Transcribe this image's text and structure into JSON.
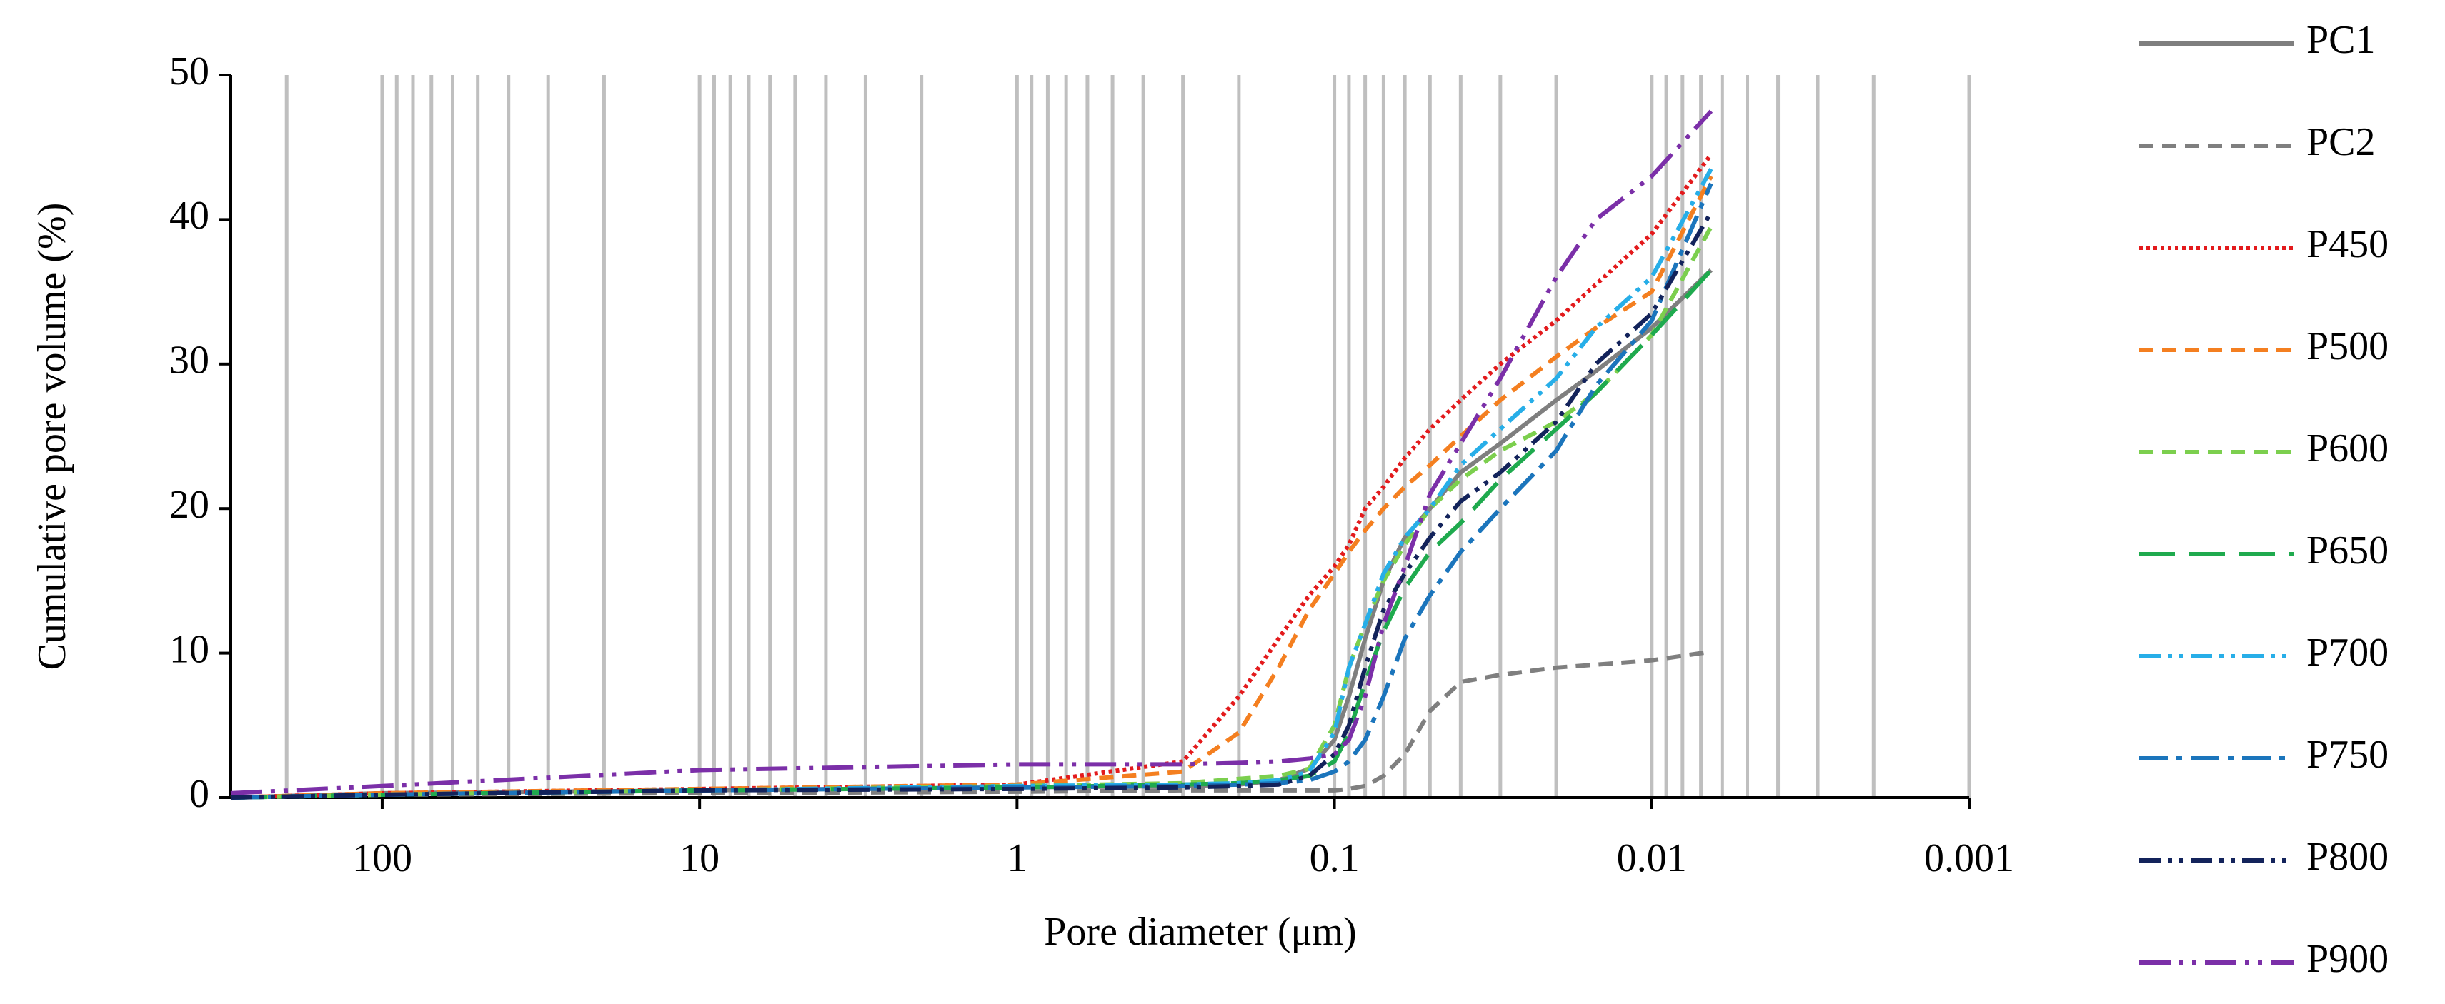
{
  "chart_data": {
    "type": "line",
    "x_label": "Pore diameter (μm)",
    "y_label": "Cumulative pore volume (%)",
    "x_scale": "log",
    "xlim": [
      300,
      0.001
    ],
    "xticks": [
      100,
      10,
      1,
      0.1,
      0.01,
      0.001
    ],
    "x_minor_grid": [
      200,
      90,
      80,
      70,
      60,
      50,
      40,
      30,
      20,
      9,
      8,
      7,
      6,
      5,
      4,
      3,
      2,
      0.9,
      0.8,
      0.7,
      0.6,
      0.5,
      0.4,
      0.3,
      0.2,
      0.09,
      0.08,
      0.07,
      0.06,
      0.05,
      0.04,
      0.03,
      0.02,
      0.009,
      0.008,
      0.007,
      0.006,
      0.005,
      0.004,
      0.003,
      0.002
    ],
    "ylim": [
      0,
      50
    ],
    "yticks": [
      0,
      10,
      20,
      30,
      40,
      50
    ],
    "grid": true,
    "legend": "right",
    "x": [
      300,
      100,
      10,
      1,
      0.3,
      0.2,
      0.15,
      0.12,
      0.1,
      0.09,
      0.08,
      0.07,
      0.06,
      0.05,
      0.04,
      0.03,
      0.02,
      0.015,
      0.01,
      0.0065
    ],
    "series": [
      {
        "name": "PC1",
        "color": "#7f7f7f",
        "dash": "solid",
        "values": [
          0,
          0.3,
          0.5,
          0.7,
          0.8,
          0.9,
          1.2,
          2,
          4,
          7,
          11,
          15,
          18,
          20,
          22.5,
          24.5,
          27.5,
          29.5,
          32.5,
          36.5
        ]
      },
      {
        "name": "PC2",
        "color": "#7f7f7f",
        "dash": "dash",
        "values": [
          0,
          0.2,
          0.3,
          0.4,
          0.5,
          0.5,
          0.5,
          0.5,
          0.5,
          0.6,
          0.8,
          1.5,
          3,
          6,
          8,
          8.5,
          9,
          9.2,
          9.5,
          10.1
        ]
      },
      {
        "name": "P450",
        "color": "#e31a1c",
        "dash": "dot",
        "values": [
          0,
          0.3,
          0.6,
          0.9,
          2.5,
          7,
          11,
          14,
          16,
          17.5,
          20,
          21.5,
          23.5,
          25.5,
          27.5,
          30,
          33,
          35.5,
          39,
          44.5
        ]
      },
      {
        "name": "P500",
        "color": "#f47f20",
        "dash": "dash",
        "values": [
          0,
          0.3,
          0.6,
          0.9,
          1.8,
          4.5,
          9,
          13,
          15.5,
          17,
          18.5,
          20,
          21.5,
          23,
          25,
          27.5,
          30.5,
          32.5,
          35,
          43
        ]
      },
      {
        "name": "P600",
        "color": "#7ccf4e",
        "dash": "dash",
        "values": [
          0,
          0.2,
          0.5,
          0.8,
          1,
          1.3,
          1.5,
          2,
          5,
          9,
          12,
          15,
          17.5,
          20,
          22,
          24,
          26,
          28,
          32,
          39.5
        ]
      },
      {
        "name": "P650",
        "color": "#1faa4e",
        "dash": "longdash",
        "values": [
          0,
          0.2,
          0.5,
          0.7,
          0.9,
          1,
          1.2,
          1.5,
          2.5,
          4.5,
          8,
          11.5,
          14.5,
          17,
          19,
          22,
          25.5,
          28,
          32,
          36.5
        ]
      },
      {
        "name": "P700",
        "color": "#27aee8",
        "dash": "dashdotdot",
        "values": [
          0,
          0.2,
          0.5,
          0.8,
          0.9,
          1,
          1.2,
          1.8,
          4.5,
          9,
          12,
          15.5,
          18,
          20,
          23,
          25.5,
          29,
          32.5,
          36,
          43.5
        ]
      },
      {
        "name": "P750",
        "color": "#1b75bc",
        "dash": "dashdot",
        "values": [
          0,
          0.2,
          0.5,
          0.7,
          0.8,
          0.9,
          1,
          1.2,
          1.8,
          2.5,
          4,
          7,
          11,
          14,
          17,
          20,
          24,
          28.5,
          33,
          42.5
        ]
      },
      {
        "name": "P800",
        "color": "#13235b",
        "dash": "dashdotdot",
        "values": [
          0,
          0.2,
          0.5,
          0.6,
          0.7,
          0.8,
          0.9,
          1.5,
          3,
          5,
          9,
          13,
          15.5,
          18,
          20.5,
          22.5,
          26,
          30,
          33.5,
          40.5
        ]
      },
      {
        "name": "P900",
        "color": "#7b2fa8",
        "dash": "longdashdotdot",
        "values": [
          0.3,
          0.8,
          1.9,
          2.3,
          2.3,
          2.4,
          2.5,
          2.7,
          3,
          4,
          7,
          12,
          16,
          21,
          24.5,
          29,
          36,
          40,
          43,
          47.5
        ]
      }
    ]
  }
}
